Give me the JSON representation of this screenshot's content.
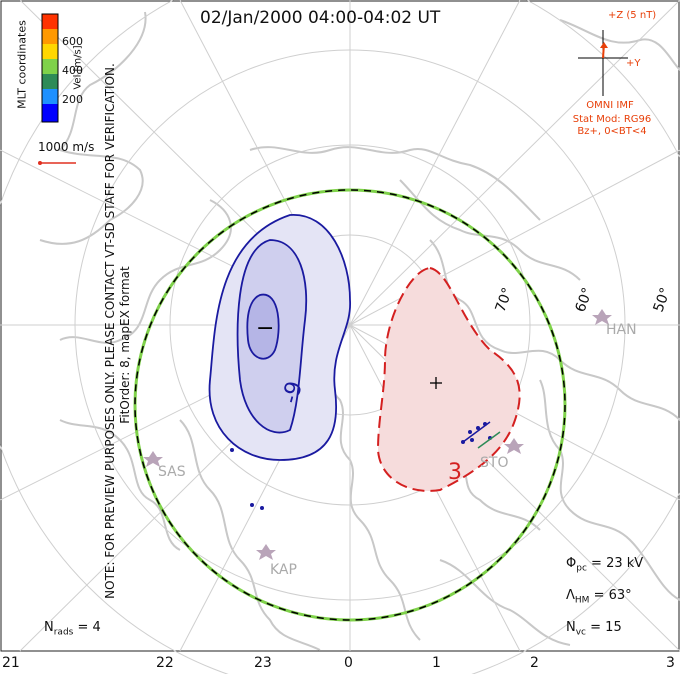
{
  "title": "02/Jan/2000 04:00-04:02 UT",
  "note_line1": "NOTE: FOR PREVIEW PURPOSES ONLY. PLEASE CONTACT VT-SD STAFF FOR VERIFICATION.",
  "note_line2": "FitOrder: 8, mapEX format",
  "coordinates_label": "MLT coordinates",
  "colorbar": {
    "axis_label": "Vel [m/s]",
    "ticks": [
      "600",
      "400",
      "200"
    ],
    "colors": [
      "#0000ff",
      "#1e90ff",
      "#2e8b57",
      "#7fd24a",
      "#ffd700",
      "#ff9900",
      "#ff3300"
    ]
  },
  "vector_scale_label": "1000 m/s",
  "imf": {
    "z_label": "+Z (5 nT)",
    "y_label": "+Y",
    "source": "OMNI IMF",
    "stat_mod": "Stat Mod: RG96",
    "condition": "Bz+, 0<BT<4",
    "color": "#e8400a"
  },
  "stats": {
    "phi_pc_label": "Φ",
    "phi_pc_sub": "pc",
    "phi_pc_value": "= 23 kV",
    "lambda_label": "Λ",
    "lambda_sub": "HM",
    "lambda_value": "= 63°",
    "nvc_label": "N",
    "nvc_sub": "vc",
    "nvc_value": "= 15",
    "nrads_label": "N",
    "nrads_sub": "rads",
    "nrads_value": "= 4"
  },
  "mlt_hours": [
    "21",
    "22",
    "23",
    "0",
    "1",
    "2",
    "3"
  ],
  "latitudes": [
    "70°",
    "60°",
    "50°"
  ],
  "stations": [
    "HAN",
    "SAS",
    "KAP",
    "STO"
  ],
  "contours": {
    "negative_label": "-9",
    "negative_marker": "−",
    "positive_label": "3",
    "positive_marker": "+",
    "negative_color": "#1a1aa0",
    "positive_color": "#d42020"
  }
}
